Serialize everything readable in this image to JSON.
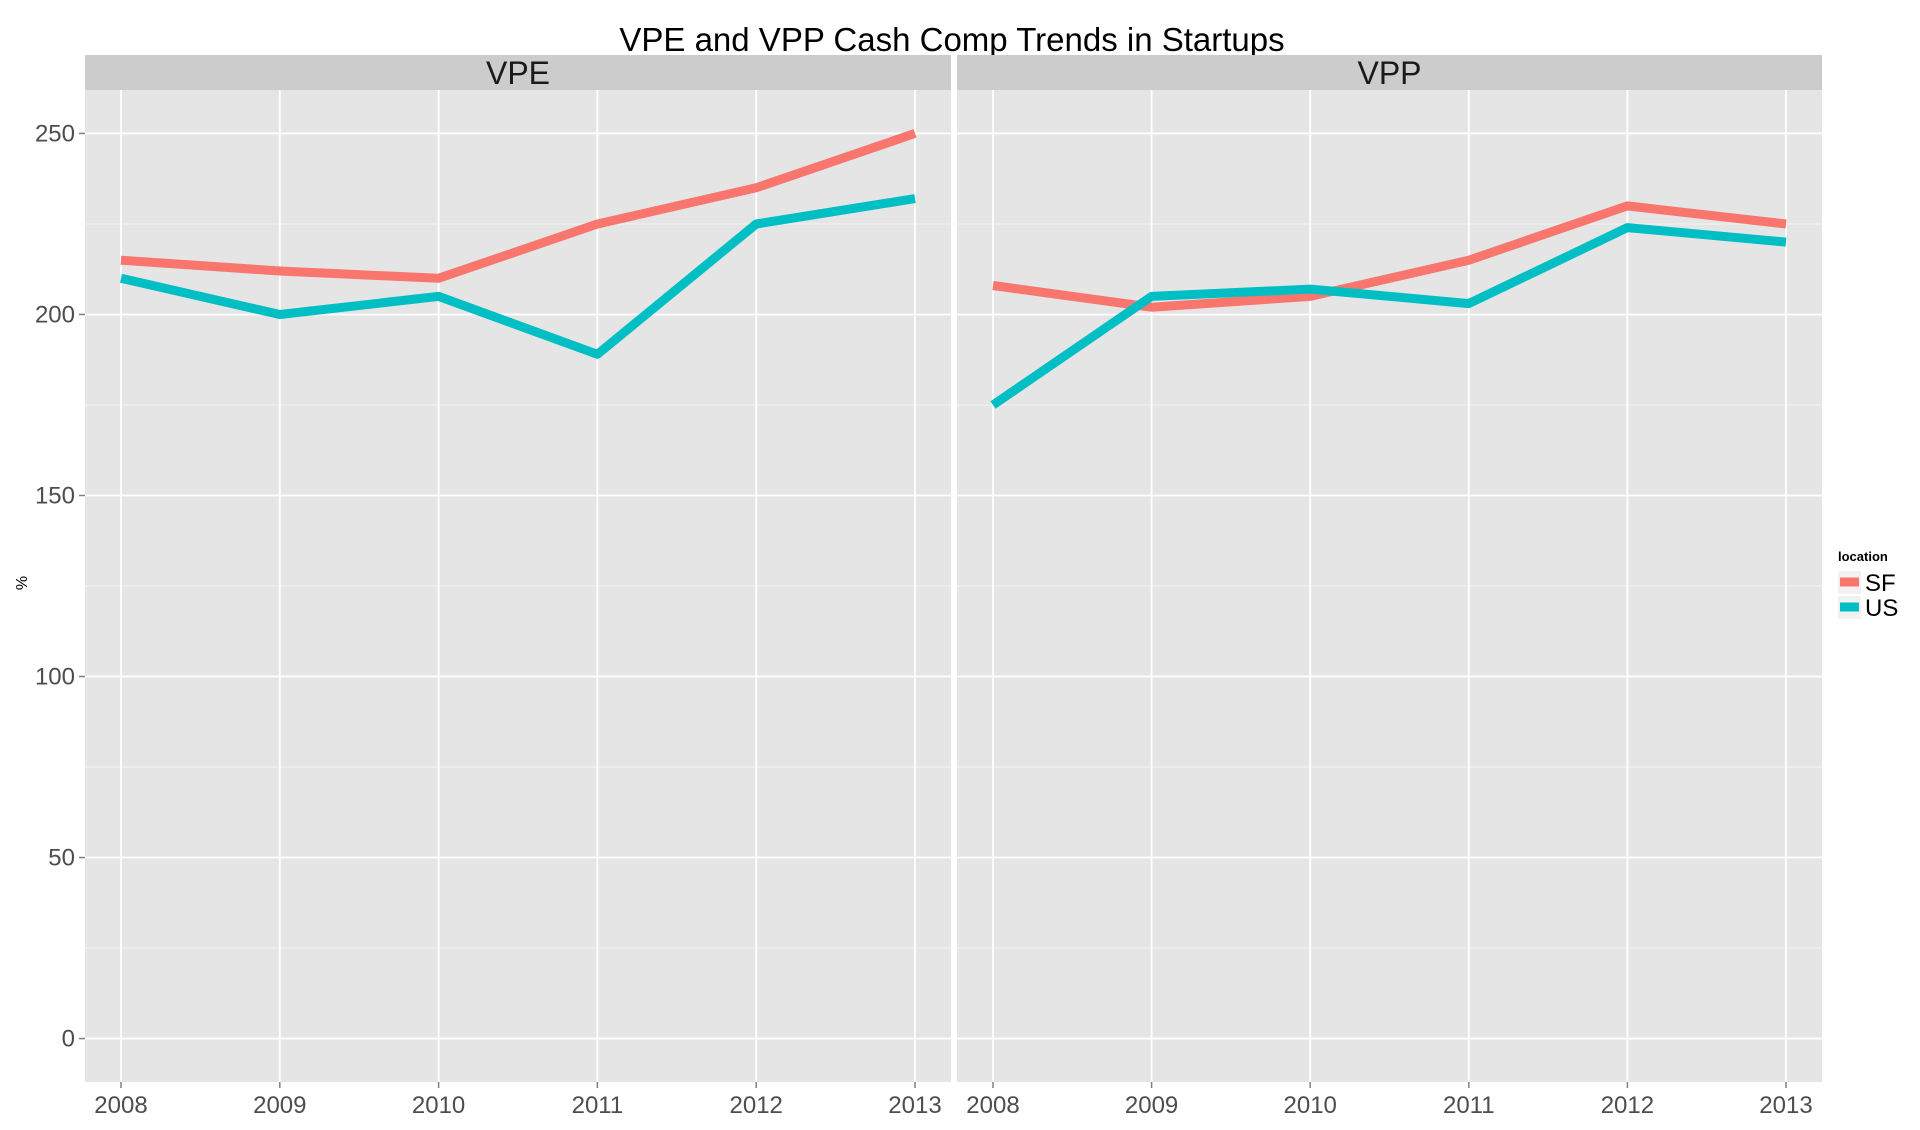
{
  "chart_data": {
    "type": "line",
    "title": "VPE and VPP Cash Comp Trends in Startups",
    "ylabel": "%",
    "xlabel": "",
    "ylim": [
      -12,
      262
    ],
    "y_ticks": [
      0,
      50,
      100,
      150,
      200,
      250
    ],
    "x": [
      "2008",
      "2009",
      "2010",
      "2011",
      "2012",
      "2013"
    ],
    "legend": {
      "title": "location",
      "placement": "right"
    },
    "colors": {
      "SF": "#F8766D",
      "US": "#00BFC4"
    },
    "panels": [
      {
        "label": "VPE",
        "series": [
          {
            "name": "SF",
            "values": [
              215,
              212,
              210,
              225,
              235,
              250
            ]
          },
          {
            "name": "US",
            "values": [
              210,
              200,
              205,
              189,
              225,
              232
            ]
          }
        ]
      },
      {
        "label": "VPP",
        "series": [
          {
            "name": "SF",
            "values": [
              208,
              202,
              205,
              215,
              230,
              225
            ]
          },
          {
            "name": "US",
            "values": [
              175,
              205,
              207,
              203,
              224,
              220
            ]
          }
        ]
      }
    ]
  }
}
